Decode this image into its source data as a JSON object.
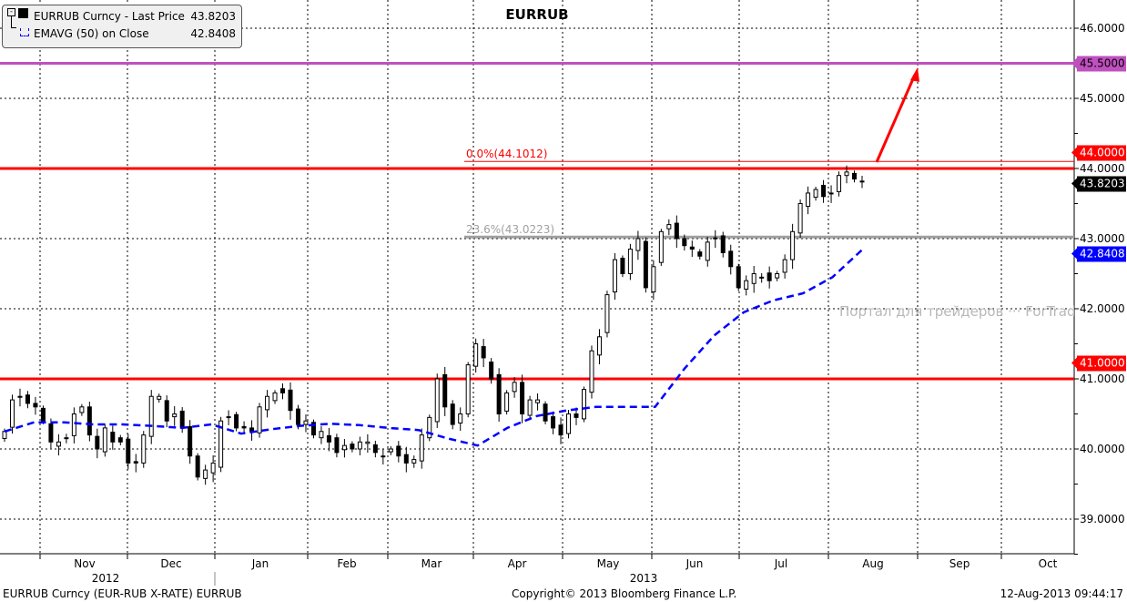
{
  "title": "EURRUB",
  "legend": {
    "series1_label": "EURRUB Curncy - Last Price",
    "series1_value": "43.8203",
    "series2_label": "EMAVG (50) on Close",
    "series2_value": "42.8408"
  },
  "watermark": "Портал для трейдеров ··· ForTrader.ru",
  "footer": {
    "left": "EURRUB Curncy (EUR-RUB X-RATE) EURRUB",
    "center": "Copyright© 2013 Bloomberg Finance L.P.",
    "right": "12-Aug-2013 09:44:17"
  },
  "colors": {
    "up_fill": "#ffffff",
    "down_fill": "#000000",
    "ema": "#0000ff",
    "resistance": "#ff0000",
    "target": "#c050c0",
    "fib_23": "#a0a0a0",
    "arrow": "#ff0000"
  },
  "chart_data": {
    "type": "candlestick",
    "title": "EURRUB",
    "ylim": [
      38.5,
      46.4
    ],
    "grid": true,
    "legend_placement": "top-left",
    "y_ticks": [
      "46.0000",
      "45.0000",
      "44.0000",
      "43.0000",
      "42.0000",
      "41.0000",
      "40.0000",
      "39.0000"
    ],
    "x_ticks": [
      "Nov",
      "Dec",
      "Jan",
      "Feb",
      "Mar",
      "Apr",
      "May",
      "Jun",
      "Jul",
      "Aug",
      "Sep",
      "Oct"
    ],
    "year_labels": [
      "2012",
      "2013"
    ],
    "series": [
      {
        "name": "EURRUB Curncy - Last Price",
        "closes": [
          40.25,
          40.7,
          40.75,
          40.65,
          40.6,
          40.4,
          40.1,
          40.1,
          40.15,
          40.5,
          40.6,
          40.2,
          40.0,
          40.3,
          40.1,
          40.1,
          39.8,
          39.8,
          40.2,
          40.75,
          40.75,
          40.4,
          40.5,
          40.3,
          39.9,
          39.6,
          39.7,
          39.8,
          40.4,
          40.45,
          40.3,
          40.3,
          40.25,
          40.6,
          40.75,
          40.8,
          40.8,
          40.55,
          40.35,
          40.4,
          40.2,
          40.25,
          40.1,
          39.95,
          40.05,
          40.0,
          40.1,
          40.1,
          39.95,
          39.9,
          40.0,
          39.9,
          39.8,
          39.85,
          40.2,
          40.45,
          41.0,
          40.6,
          40.35,
          40.5,
          41.2,
          41.5,
          41.3,
          41.0,
          40.5,
          40.8,
          40.95,
          40.5,
          40.7,
          40.7,
          40.4,
          40.3,
          40.2,
          40.5,
          40.45,
          40.85,
          41.4,
          41.6,
          42.2,
          42.7,
          42.5,
          42.85,
          43.0,
          42.3,
          42.6,
          43.1,
          43.2,
          43.0,
          42.9,
          42.85,
          42.75,
          42.95,
          43.0,
          42.8,
          42.6,
          42.3,
          42.4,
          42.5,
          42.45,
          42.4,
          42.5,
          42.7,
          43.1,
          43.5,
          43.65,
          43.7,
          43.6,
          43.65,
          43.9,
          43.95,
          43.85,
          43.8203
        ]
      },
      {
        "name": "EMAVG (50) on Close",
        "type": "line",
        "style": "dashed",
        "values": [
          40.25,
          40.38,
          40.38,
          40.35,
          40.35,
          40.33,
          40.3,
          40.35,
          40.22,
          40.28,
          40.33,
          40.36,
          40.34,
          40.3,
          40.27,
          40.15,
          40.05,
          40.3,
          40.47,
          40.55,
          40.6,
          40.6,
          40.6,
          41.15,
          41.62,
          41.95,
          42.12,
          42.22,
          42.45,
          42.8408
        ]
      }
    ],
    "horizontal_lines": [
      {
        "value": 45.5,
        "label": "45.5000",
        "color": "#c050c0"
      },
      {
        "value": 44.0,
        "label": "44.0000",
        "color": "#ff0000"
      },
      {
        "value": 41.0,
        "label": "41.0000",
        "color": "#ff0000"
      }
    ],
    "fibonacci": [
      {
        "level": "0.0%",
        "value": 44.1012,
        "label": "0.0%(44.1012)",
        "color": "#ff0000"
      },
      {
        "level": "23.6%",
        "value": 43.0223,
        "label": "23.6%(43.0223)",
        "color": "#a0a0a0"
      }
    ],
    "last_value_tags": [
      {
        "label": "43.8203",
        "bg": "#000000",
        "fg": "#ffffff",
        "value": 43.8203
      },
      {
        "label": "42.8408",
        "bg": "#0000ff",
        "fg": "#ffffff",
        "value": 42.8408
      }
    ],
    "annotation": {
      "type": "arrow",
      "from_value": 44.1,
      "to_value": 45.5,
      "color": "#ff0000"
    }
  }
}
